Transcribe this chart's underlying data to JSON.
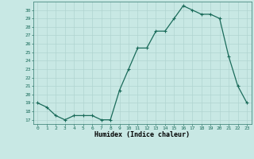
{
  "x": [
    0,
    1,
    2,
    3,
    4,
    5,
    6,
    7,
    8,
    9,
    10,
    11,
    12,
    13,
    14,
    15,
    16,
    17,
    18,
    19,
    20,
    21,
    22,
    23
  ],
  "y": [
    19,
    18.5,
    17.5,
    17,
    17.5,
    17.5,
    17.5,
    17,
    17,
    20.5,
    23,
    25.5,
    25.5,
    27.5,
    27.5,
    29,
    30.5,
    30,
    29.5,
    29.5,
    29,
    24.5,
    21,
    19
  ],
  "line_color": "#1a6b5a",
  "marker": "+",
  "marker_size": 3,
  "marker_edge_width": 0.8,
  "background_color": "#c8e8e4",
  "grid_color": "#b0d4d0",
  "xlabel": "Humidex (Indice chaleur)",
  "xlim": [
    -0.5,
    23.5
  ],
  "ylim": [
    16.5,
    31
  ],
  "yticks": [
    17,
    18,
    19,
    20,
    21,
    22,
    23,
    24,
    25,
    26,
    27,
    28,
    29,
    30
  ],
  "xticks": [
    0,
    1,
    2,
    3,
    4,
    5,
    6,
    7,
    8,
    9,
    10,
    11,
    12,
    13,
    14,
    15,
    16,
    17,
    18,
    19,
    20,
    21,
    22,
    23
  ],
  "tick_fontsize": 4.5,
  "label_fontsize": 6.0,
  "line_width": 0.9
}
